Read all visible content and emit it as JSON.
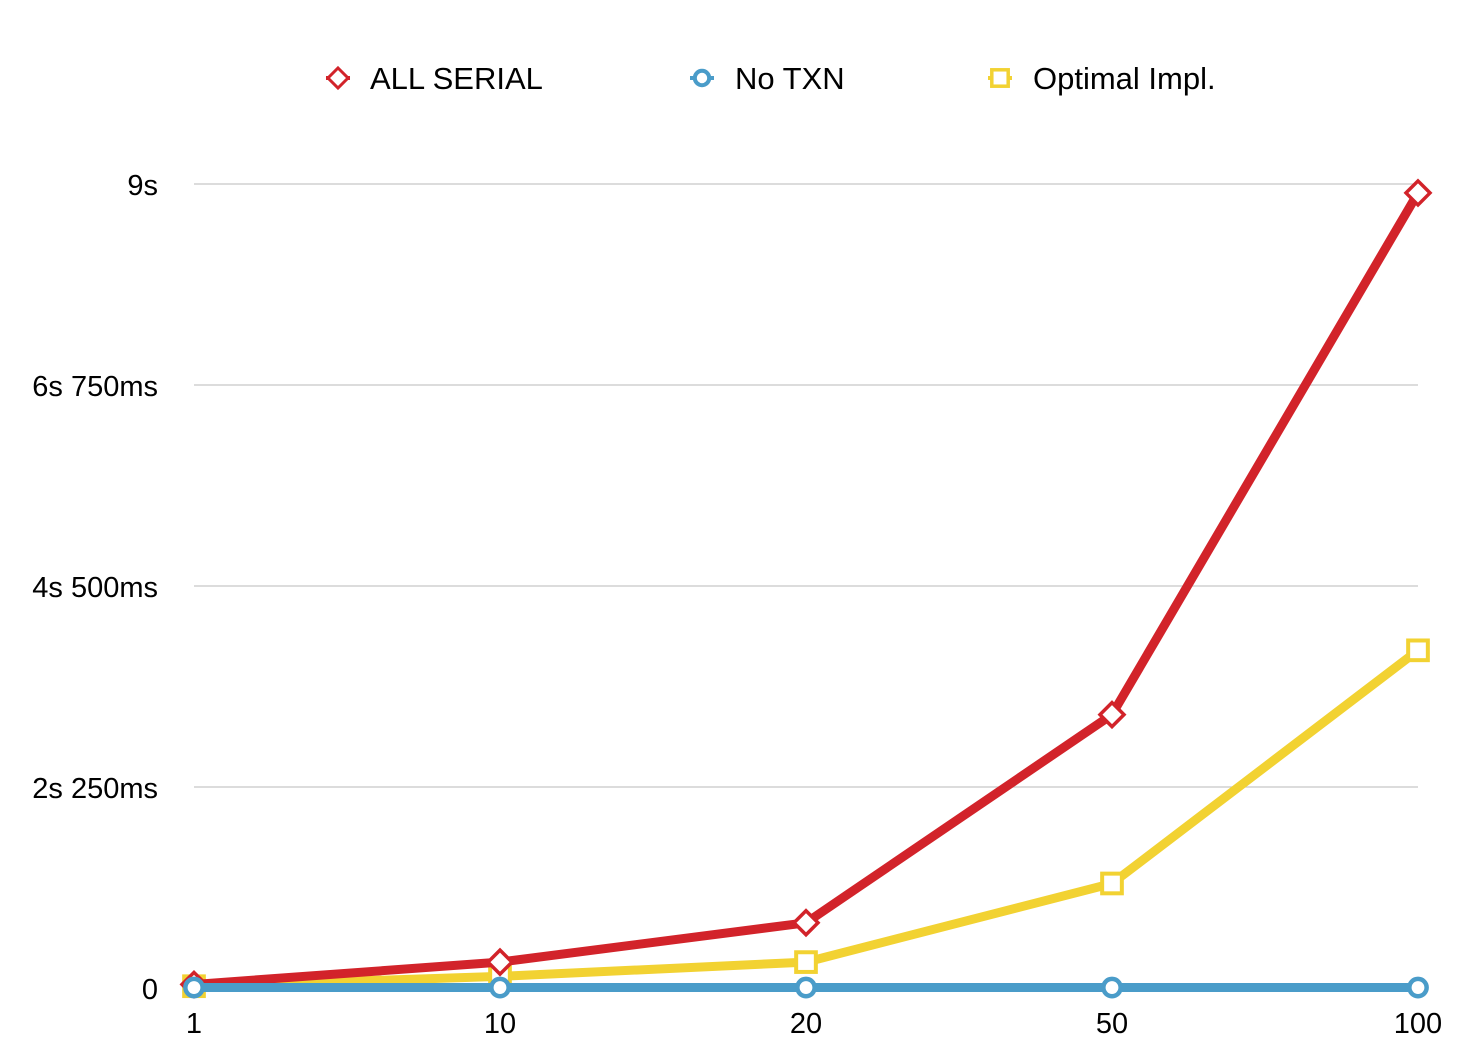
{
  "chart_data": {
    "type": "line",
    "title": "",
    "xlabel": "",
    "ylabel": "",
    "categories": [
      "1",
      "10",
      "20",
      "50",
      "100"
    ],
    "y_ticks": [
      {
        "value": 0,
        "label": "0"
      },
      {
        "value": 2250,
        "label": "2s 250ms"
      },
      {
        "value": 4500,
        "label": "4s 500ms"
      },
      {
        "value": 6750,
        "label": "6s 750ms"
      },
      {
        "value": 9000,
        "label": "9s"
      }
    ],
    "ylim": [
      0,
      9000
    ],
    "grid": true,
    "legend_position": "top",
    "series": [
      {
        "name": "ALL SERIAL",
        "color": "#d2232a",
        "marker": "diamond",
        "values": [
          40,
          290,
          730,
          3060,
          8900
        ]
      },
      {
        "name": "No TXN",
        "color": "#4a9cc9",
        "marker": "circle",
        "values": [
          5,
          5,
          5,
          5,
          5
        ]
      },
      {
        "name": "Optimal Impl.",
        "color": "#f2d232",
        "marker": "square",
        "values": [
          20,
          130,
          290,
          1170,
          3780
        ]
      }
    ]
  }
}
